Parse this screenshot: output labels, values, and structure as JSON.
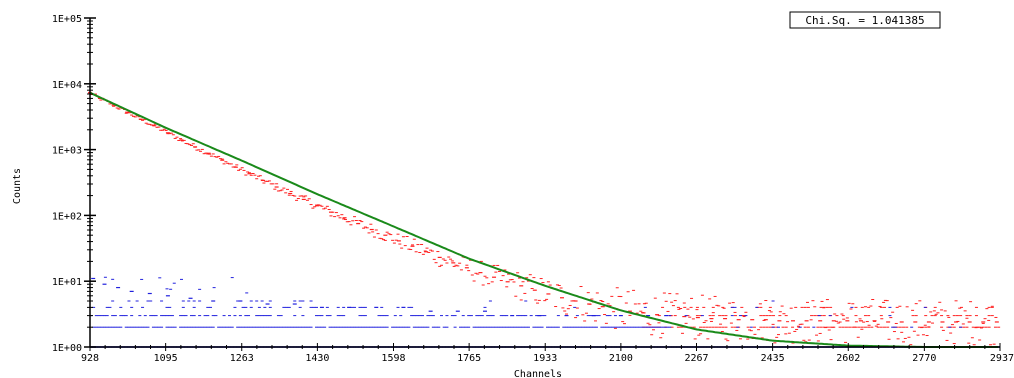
{
  "chart_data": {
    "type": "scatter",
    "xlabel": "Channels",
    "ylabel": "Counts",
    "x_ticks": [
      "928",
      "1095",
      "1263",
      "1430",
      "1598",
      "1765",
      "1933",
      "2100",
      "2267",
      "2435",
      "2602",
      "2770",
      "2937"
    ],
    "y_ticks": [
      "1E+00",
      "1E+01",
      "1E+02",
      "1E+03",
      "1E+04",
      "1E+05"
    ],
    "xlim": [
      928,
      2937
    ],
    "ylim": [
      1,
      100000
    ],
    "y_scale": "log",
    "annotation": "Chi.Sq. = 1.041385",
    "series": [
      {
        "kind": "data",
        "color": "#ff2020",
        "style": "dashes",
        "x": [
          928,
          950,
          980,
          1010,
          1040,
          1070,
          1100,
          1130,
          1160,
          1190,
          1220,
          1250,
          1280,
          1310,
          1340,
          1370,
          1400,
          1430,
          1460,
          1490,
          1520,
          1550,
          1580,
          1610,
          1640,
          1670,
          1700,
          1730,
          1760,
          1790,
          1820,
          1850,
          1880,
          1910,
          1940,
          1970,
          2000,
          2030,
          2060,
          2090,
          2120,
          2150,
          2180,
          2210,
          2240,
          2270,
          2300,
          2330,
          2360,
          2390,
          2420,
          2450,
          2480,
          2510,
          2540,
          2570,
          2600,
          2630,
          2660,
          2690,
          2720,
          2750,
          2780,
          2810,
          2840,
          2870,
          2900,
          2930
        ],
        "y": [
          7300,
          6000,
          4750,
          3700,
          2900,
          2300,
          1800,
          1400,
          1100,
          880,
          690,
          540,
          430,
          340,
          270,
          215,
          175,
          140,
          112,
          92,
          75,
          61,
          50,
          41,
          34,
          28,
          23,
          19,
          16,
          13.5,
          11.5,
          9.8,
          8.5,
          7.3,
          6.4,
          5.6,
          5.0,
          4.5,
          4.1,
          3.8,
          3.5,
          3.3,
          3.1,
          3.0,
          2.9,
          2.8,
          2.7,
          2.7,
          2.6,
          2.6,
          2.6,
          2.5,
          2.5,
          2.5,
          2.5,
          2.5,
          2.5,
          2.5,
          2.5,
          2.4,
          2.4,
          2.4,
          2.4,
          2.4,
          2.4,
          2.4,
          2.4,
          2.4
        ]
      },
      {
        "kind": "background",
        "color": "#2020dd",
        "style": "dashes",
        "x": [
          935,
          960,
          990,
          1020,
          1060,
          1100,
          1150,
          1200,
          1260,
          1320,
          1380,
          1440,
          1500,
          1560,
          1620,
          1680,
          1740,
          1800,
          1860,
          1920,
          1980,
          2040,
          2100,
          2160,
          2200
        ],
        "y": [
          11,
          9,
          8,
          7,
          6.5,
          6,
          5.5,
          5,
          5,
          4.5,
          4.5,
          4,
          4,
          4,
          4,
          3.5,
          3.5,
          3.5,
          3,
          3,
          3,
          3,
          3,
          3,
          3
        ]
      },
      {
        "kind": "fit",
        "color": "#1a8a1a",
        "style": "line",
        "x": [
          928,
          1095,
          1263,
          1430,
          1598,
          1765,
          1933,
          2100,
          2267,
          2435,
          2602,
          2770,
          2937
        ],
        "y": [
          7300,
          2150,
          680,
          210,
          68,
          22,
          8.5,
          3.6,
          1.85,
          1.25,
          1.05,
          1.0,
          1.0
        ]
      }
    ]
  }
}
